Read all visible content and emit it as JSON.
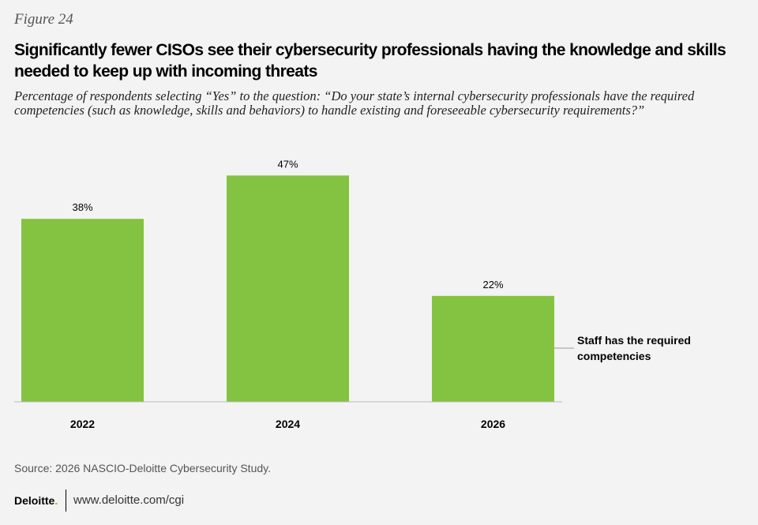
{
  "figure_label": "Figure 24",
  "chart_data": {
    "type": "bar",
    "title": "Significantly fewer CISOs see their cybersecurity professionals having the knowledge and skills needed to keep up with incoming threats",
    "subtitle": "Percentage of respondents selecting “Yes” to the question: “Do your state’s internal cybersecurity professionals have the required competencies (such as knowledge, skills and behaviors) to handle existing and foreseeable cybersecurity requirements?”",
    "categories": [
      "2022",
      "2024",
      "2026"
    ],
    "series": [
      {
        "name": "Staff has the required competencies",
        "values": [
          38,
          47,
          22
        ],
        "labels": [
          "38%",
          "47%",
          "22%"
        ],
        "color": "#84c341"
      }
    ],
    "ylim": [
      0,
      50
    ],
    "xlabel": "",
    "ylabel": "",
    "grid": false,
    "legend": "right"
  },
  "legend_lines": [
    "Staff has the required",
    "competencies"
  ],
  "source": "Source: 2026 NASCIO-Deloitte Cybersecurity Study.",
  "footer": {
    "logo": "Deloitte",
    "url": "www.deloitte.com/cgi"
  }
}
